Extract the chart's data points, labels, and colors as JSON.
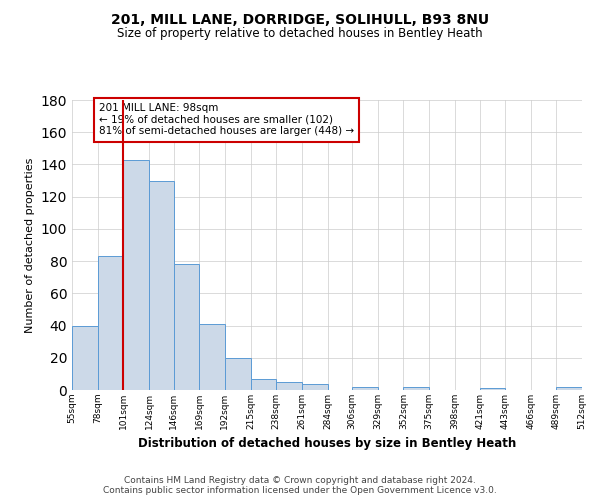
{
  "title": "201, MILL LANE, DORRIDGE, SOLIHULL, B93 8NU",
  "subtitle": "Size of property relative to detached houses in Bentley Heath",
  "xlabel": "Distribution of detached houses by size in Bentley Heath",
  "ylabel": "Number of detached properties",
  "bin_edges": [
    55,
    78,
    101,
    124,
    146,
    169,
    192,
    215,
    238,
    261,
    284,
    306,
    329,
    352,
    375,
    398,
    421,
    443,
    466,
    489,
    512
  ],
  "bin_labels": [
    "55sqm",
    "78sqm",
    "101sqm",
    "124sqm",
    "146sqm",
    "169sqm",
    "192sqm",
    "215sqm",
    "238sqm",
    "261sqm",
    "284sqm",
    "306sqm",
    "329sqm",
    "352sqm",
    "375sqm",
    "398sqm",
    "421sqm",
    "443sqm",
    "466sqm",
    "489sqm",
    "512sqm"
  ],
  "bar_heights": [
    40,
    83,
    143,
    130,
    78,
    41,
    20,
    7,
    5,
    4,
    0,
    2,
    0,
    2,
    0,
    0,
    1,
    0,
    0,
    2
  ],
  "bar_fill": "#ccd9e8",
  "bar_edge": "#5b9bd5",
  "property_line_x": 101,
  "property_line_color": "#cc0000",
  "annotation_box_edge": "#cc0000",
  "annotation_text_line1": "201 MILL LANE: 98sqm",
  "annotation_text_line2": "← 19% of detached houses are smaller (102)",
  "annotation_text_line3": "81% of semi-detached houses are larger (448) →",
  "ylim": [
    0,
    180
  ],
  "yticks": [
    0,
    20,
    40,
    60,
    80,
    100,
    120,
    140,
    160,
    180
  ],
  "footer_line1": "Contains HM Land Registry data © Crown copyright and database right 2024.",
  "footer_line2": "Contains public sector information licensed under the Open Government Licence v3.0.",
  "background_color": "#ffffff",
  "grid_color": "#cccccc"
}
